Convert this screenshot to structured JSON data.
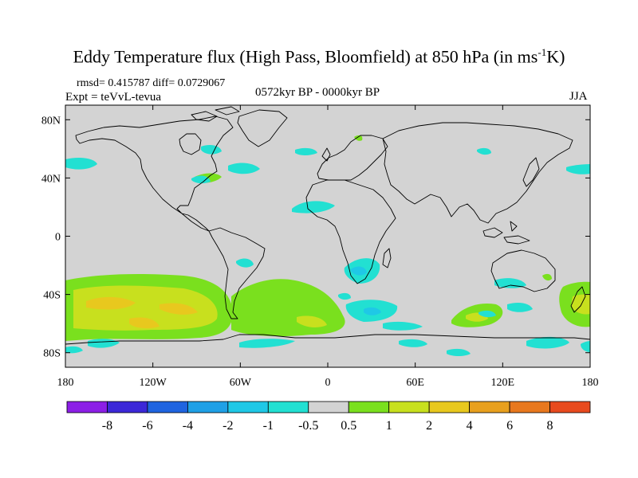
{
  "title": {
    "main": "Eddy Temperature flux (High Pass, Bloomfield) at 850 hPa (in ms",
    "sup": "-1",
    "tail": "K)"
  },
  "stats": "rmsd= 0.415787 diff= 0.0729067",
  "experiment": "Expt = teVvL-tevua",
  "period": "0572kyr BP - 0000kyr BP",
  "season": "JJA",
  "axes": {
    "lat_labels": [
      "80N",
      "40N",
      "0",
      "40S",
      "80S"
    ],
    "lat_values": [
      80,
      40,
      0,
      -40,
      -80
    ],
    "lon_labels": [
      "180",
      "120W",
      "60W",
      "0",
      "60E",
      "120E",
      "180"
    ],
    "lon_values": [
      -180,
      -120,
      -60,
      0,
      60,
      120,
      180
    ]
  },
  "colorbar": {
    "colors": [
      "#8c1fe6",
      "#3c28d8",
      "#1f64e0",
      "#1fa0e6",
      "#1fc8e6",
      "#22e0d2",
      "#d3d3d3",
      "#7ae01e",
      "#c8e01e",
      "#e8c81e",
      "#e8a01e",
      "#e8781e",
      "#e84a1e"
    ],
    "labels": [
      "-8",
      "-6",
      "-4",
      "-2",
      "-1",
      "-0.5",
      "0.5",
      "1",
      "2",
      "4",
      "6",
      "8"
    ]
  },
  "colors": {
    "background": "#d3d3d3",
    "coast": "#000000",
    "cyan": "#22e0d2",
    "lightblue": "#1fc8e6",
    "green": "#7ae01e",
    "yellow": "#c8e01e",
    "orange": "#e8c81e"
  }
}
